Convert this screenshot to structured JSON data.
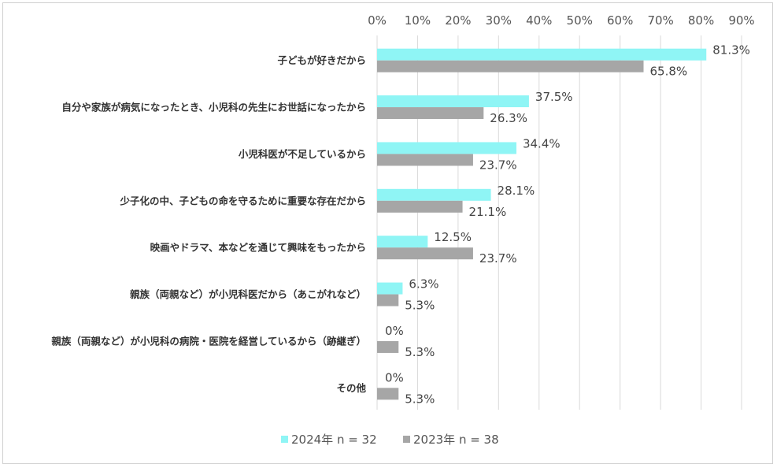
{
  "chart_data": {
    "type": "bar",
    "orientation": "horizontal",
    "categories": [
      "子どもが好きだから",
      "自分や家族が病気になったとき、小児科の先生にお世話になったから",
      "小児科医が不足しているから",
      "少子化の中、子どもの命を守るために重要な存在だから",
      "映画やドラマ、本などを通じて興味をもったから",
      "親族（両親など）が小児科医だから（あこがれなど）",
      "親族（両親など）が小児科の病院・医院を経営しているから（跡継ぎ）",
      "その他"
    ],
    "series": [
      {
        "name": "2024年 n = 32",
        "color": "#8ff5f5",
        "values": [
          81.3,
          37.5,
          34.4,
          28.1,
          12.5,
          6.3,
          0,
          0
        ],
        "labels": [
          "81.3%",
          "37.5%",
          "34.4%",
          "28.1%",
          "12.5%",
          "6.3%",
          "0%",
          "0%"
        ]
      },
      {
        "name": "2023年 n = 38",
        "color": "#a6a6a6",
        "values": [
          65.8,
          26.3,
          23.7,
          21.1,
          23.7,
          5.3,
          5.3,
          5.3
        ],
        "labels": [
          "65.8%",
          "26.3%",
          "23.7%",
          "21.1%",
          "23.7%",
          "5.3%",
          "5.3%",
          "5.3%"
        ]
      }
    ],
    "xlim": [
      0,
      90
    ],
    "xticks": [
      "0%",
      "10%",
      "20%",
      "30%",
      "40%",
      "50%",
      "60%",
      "70%",
      "80%",
      "90%"
    ],
    "xaxis_position": "top",
    "grid": true,
    "legend_position": "bottom"
  }
}
